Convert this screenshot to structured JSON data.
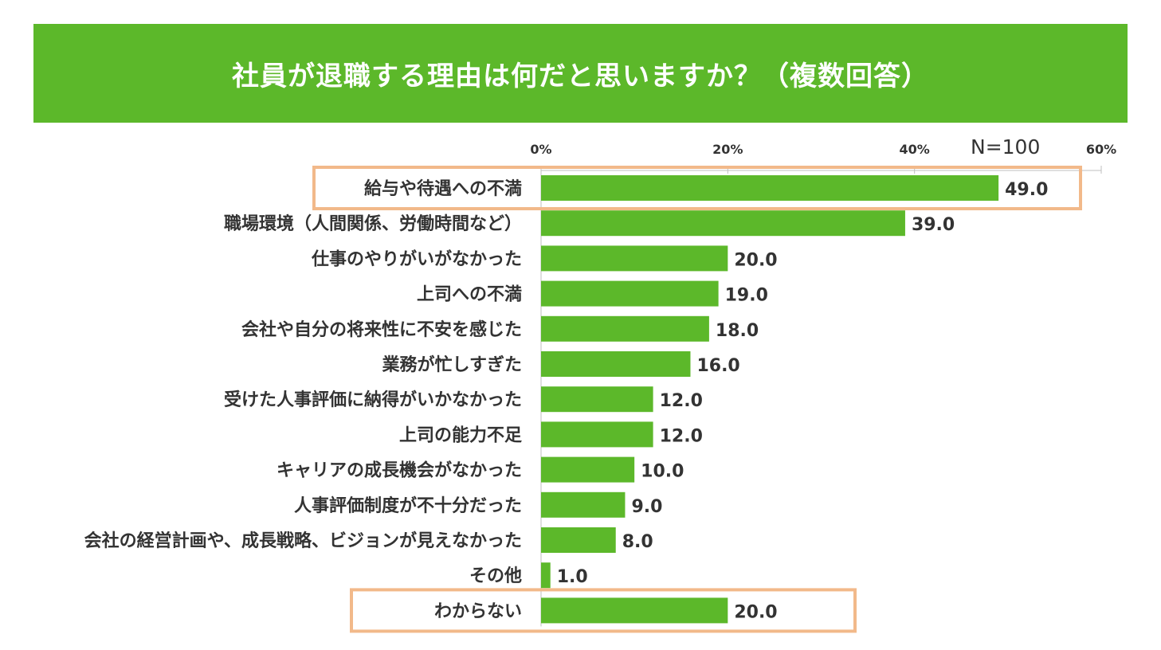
{
  "title": "社員が退職する理由は何だと思いますか？（複数回答）",
  "sample_size": "N=100",
  "colors": {
    "banner": "#5cb82a",
    "bar": "#5cb82a",
    "highlight_border": "#f2b98a",
    "text": "#333333",
    "axis": "#bfbfbf"
  },
  "chart_data": {
    "type": "bar",
    "orientation": "horizontal",
    "title": "社員が退職する理由は何だと思いますか？（複数回答）",
    "xlim": [
      0,
      60
    ],
    "ticks": [
      0,
      20,
      40,
      60
    ],
    "tick_labels": [
      "0%",
      "20%",
      "40%",
      "60%"
    ],
    "grid": false,
    "categories": [
      "給与や待遇への不満",
      "職場環境（人間関係、労働時間など）",
      "仕事のやりがいがなかった",
      "上司への不満",
      "会社や自分の将来性に不安を感じた",
      "業務が忙しすぎた",
      "受けた人事評価に納得がいかなかった",
      "上司の能力不足",
      "キャリアの成長機会がなかった",
      "人事評価制度が不十分だった",
      "会社の経営計画や、成長戦略、ビジョンが見えなかった",
      "その他",
      "わからない"
    ],
    "values": [
      49.0,
      39.0,
      20.0,
      19.0,
      18.0,
      16.0,
      12.0,
      12.0,
      10.0,
      9.0,
      8.0,
      1.0,
      20.0
    ],
    "value_labels": [
      "49.0",
      "39.0",
      "20.0",
      "19.0",
      "18.0",
      "16.0",
      "12.0",
      "12.0",
      "10.0",
      "9.0",
      "8.0",
      "1.0",
      "20.0"
    ],
    "highlighted": [
      0,
      12
    ]
  }
}
